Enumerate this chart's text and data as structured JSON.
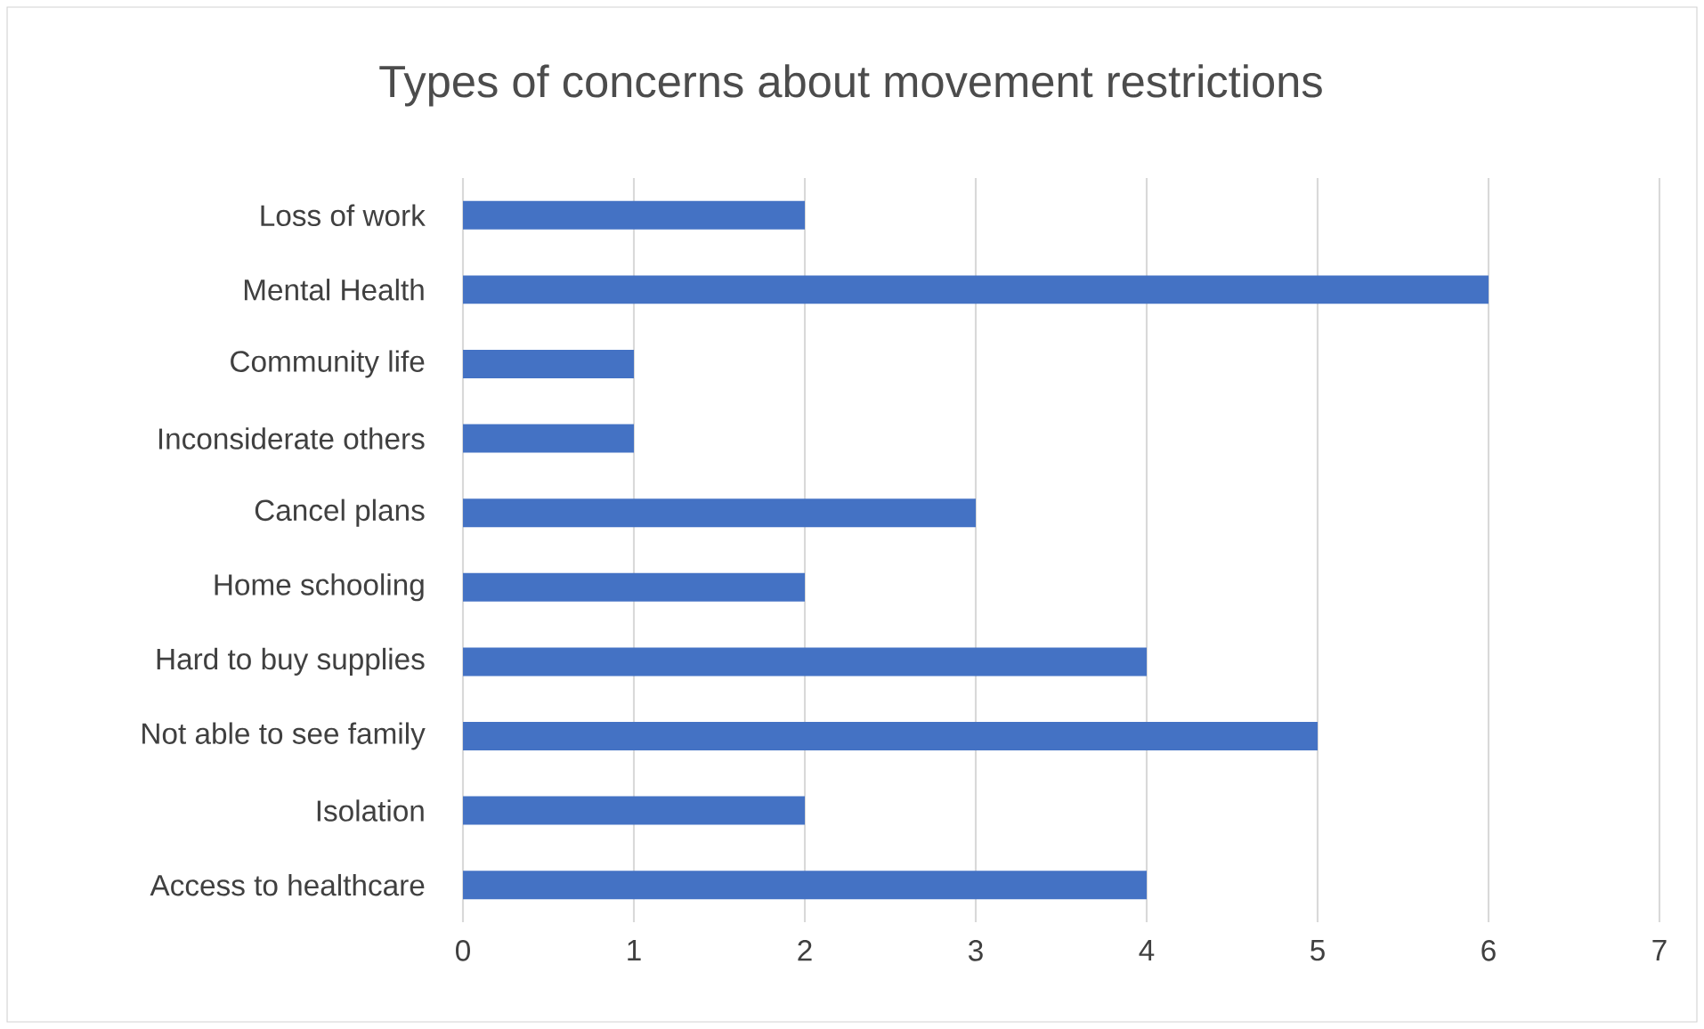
{
  "chart_data": {
    "type": "bar",
    "orientation": "horizontal",
    "title": "Types of concerns about movement restrictions",
    "categories": [
      "Loss of work",
      "Mental Health",
      "Community life",
      "Inconsiderate others",
      "Cancel plans",
      "Home schooling",
      "Hard to buy supplies",
      "Not able to see family",
      "Isolation",
      "Access to healthcare"
    ],
    "values": [
      2,
      6,
      1,
      1,
      3,
      2,
      4,
      5,
      2,
      4
    ],
    "color": "#4472c4",
    "xlim": [
      0,
      7
    ],
    "xticks": [
      0,
      1,
      2,
      3,
      4,
      5,
      6,
      7
    ],
    "grid": "x"
  }
}
